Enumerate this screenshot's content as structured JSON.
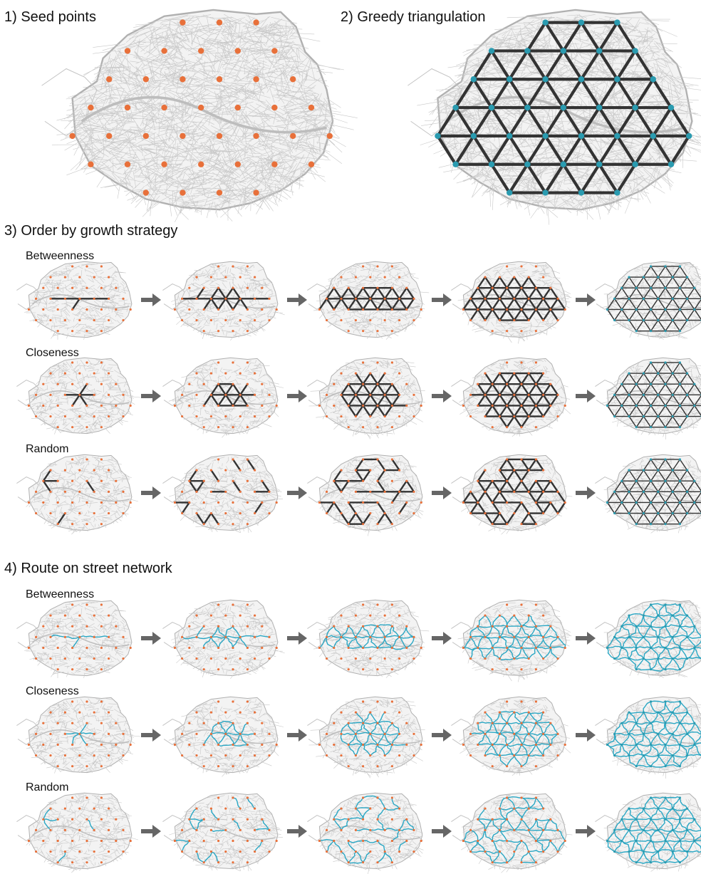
{
  "sections": {
    "seed": {
      "title": "1) Seed points"
    },
    "greedy": {
      "title": "2) Greedy triangulation"
    },
    "order": {
      "title": "3) Order by growth strategy",
      "rows": [
        {
          "label": "Betweenness"
        },
        {
          "label": "Closeness"
        },
        {
          "label": "Random"
        }
      ]
    },
    "route": {
      "title": "4) Route on street network",
      "rows": [
        {
          "label": "Betweenness"
        },
        {
          "label": "Closeness"
        },
        {
          "label": "Random"
        }
      ]
    }
  },
  "colors": {
    "seed_point": "#e8703a",
    "node": "#2a9bb0",
    "triangulation_edge": "#333333",
    "route_edge": "#2aa7c4",
    "street": "#c8c8c8",
    "arrow": "#666666"
  },
  "icons": {
    "arrow": "right-arrow-icon"
  }
}
